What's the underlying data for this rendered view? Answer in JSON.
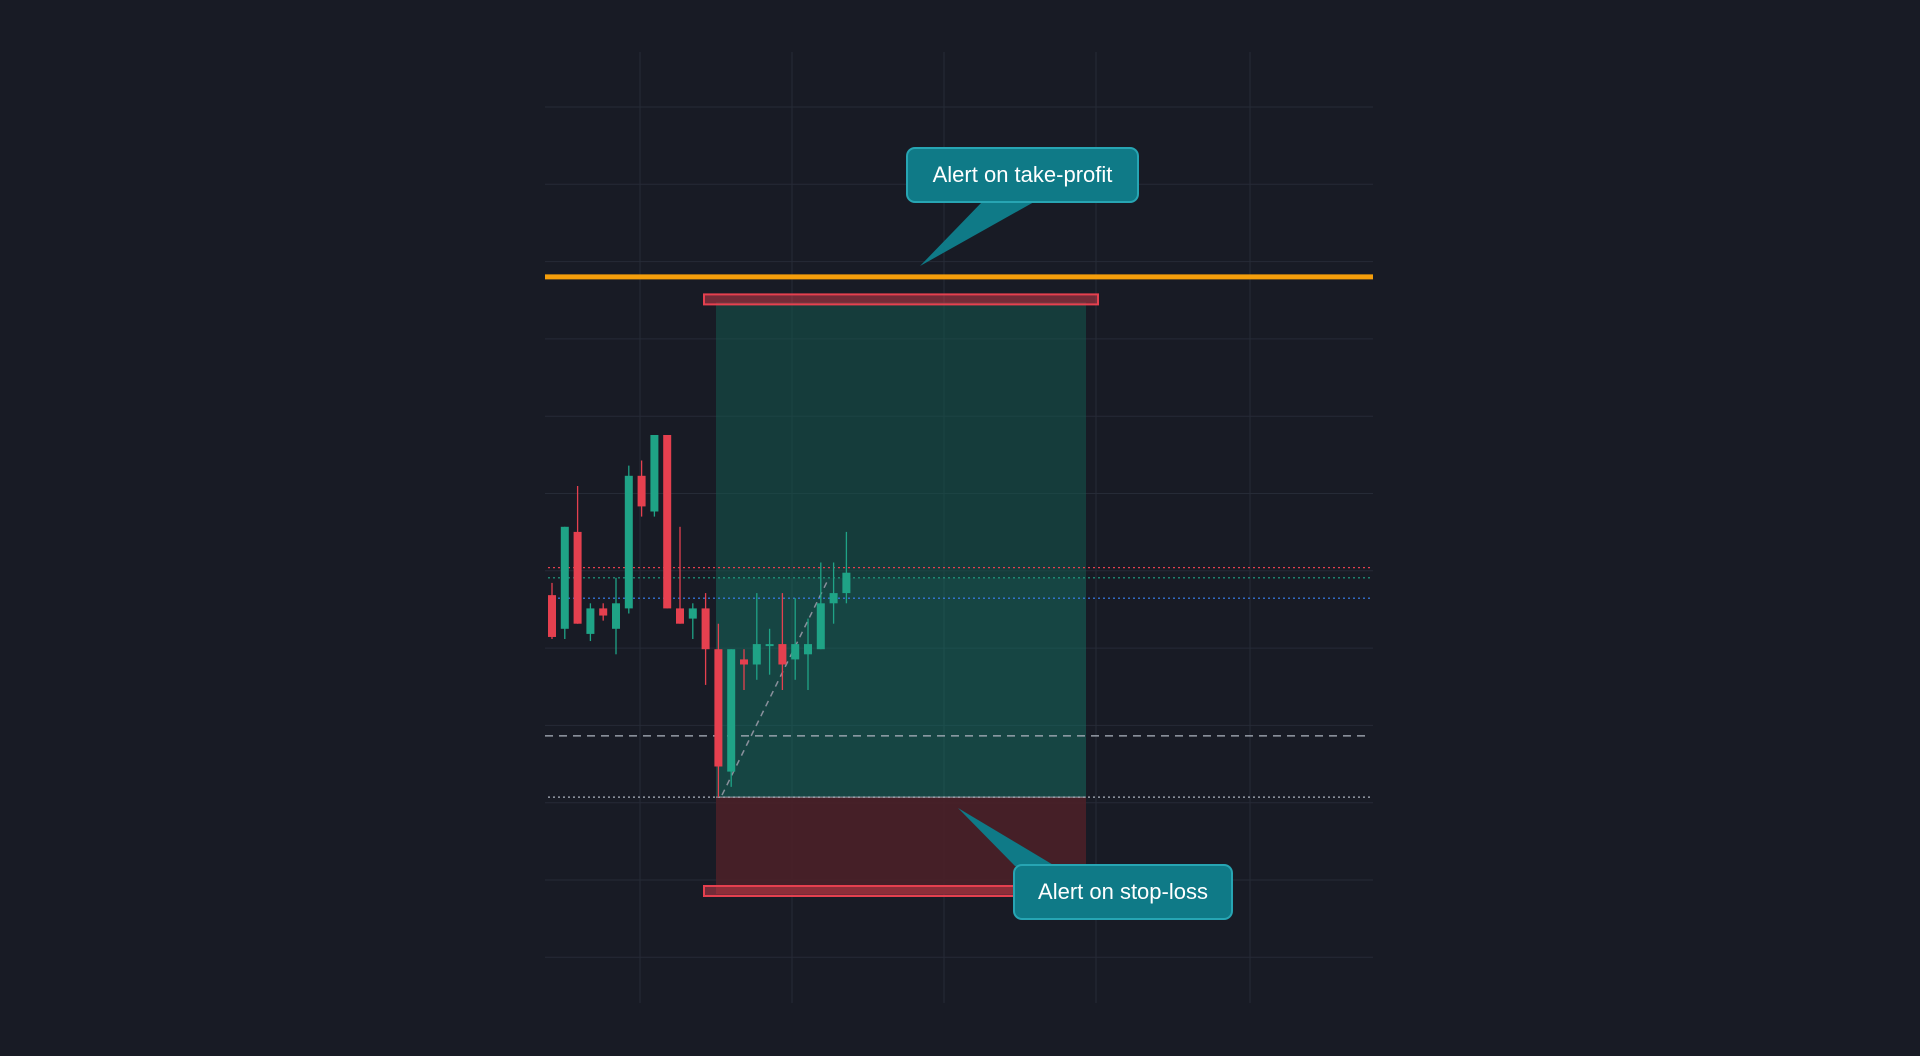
{
  "callouts": {
    "take_profit": "Alert on take-profit",
    "stop_loss": "Alert on stop-loss"
  },
  "colors": {
    "background": "#181b25",
    "grid": "#262b37",
    "up_candle": "#1fa386",
    "down_candle": "#e5404f",
    "alert_line": "#f59e0b",
    "callout_bg": "#0f7a87",
    "profit_zone": "#14574f",
    "loss_zone": "#4a2028",
    "order_box": "#e5404f",
    "blue_line": "#3b82f6"
  },
  "chart_data": {
    "type": "candlestick",
    "price_range": [
      0,
      100
    ],
    "levels": {
      "alert_line": 80.5,
      "take_profit": 78.0,
      "last_high": 52.0,
      "entry": 51.0,
      "blue_line": 49.0,
      "dashed_line": 35.5,
      "stop_entry": 29.5,
      "stop_loss": 20.0
    },
    "candles": [
      {
        "o": 49.3,
        "h": 50.5,
        "l": 45.0,
        "c": 45.2
      },
      {
        "o": 46.0,
        "h": 56.0,
        "l": 45.0,
        "c": 56.0
      },
      {
        "o": 55.5,
        "h": 60.0,
        "l": 46.5,
        "c": 46.5
      },
      {
        "o": 45.5,
        "h": 48.5,
        "l": 44.8,
        "c": 48.0
      },
      {
        "o": 48.0,
        "h": 48.5,
        "l": 46.8,
        "c": 47.3
      },
      {
        "o": 46.0,
        "h": 51.0,
        "l": 43.5,
        "c": 48.5
      },
      {
        "o": 48.0,
        "h": 62.0,
        "l": 47.5,
        "c": 61.0
      },
      {
        "o": 61.0,
        "h": 62.5,
        "l": 57.0,
        "c": 58.0
      },
      {
        "o": 57.5,
        "h": 65.0,
        "l": 57.0,
        "c": 65.0
      },
      {
        "o": 65.0,
        "h": 65.0,
        "l": 48.0,
        "c": 48.0
      },
      {
        "o": 48.0,
        "h": 56.0,
        "l": 46.5,
        "c": 46.5
      },
      {
        "o": 47.0,
        "h": 48.5,
        "l": 45.0,
        "c": 48.0
      },
      {
        "o": 48.0,
        "h": 49.5,
        "l": 40.5,
        "c": 44.0
      },
      {
        "o": 44.0,
        "h": 46.5,
        "l": 29.5,
        "c": 32.5
      },
      {
        "o": 32.0,
        "h": 44.0,
        "l": 30.5,
        "c": 44.0
      },
      {
        "o": 43.0,
        "h": 44.0,
        "l": 40.0,
        "c": 42.5
      },
      {
        "o": 42.5,
        "h": 49.5,
        "l": 41.0,
        "c": 44.5
      },
      {
        "o": 44.5,
        "h": 46.0,
        "l": 41.5,
        "c": 44.5
      },
      {
        "o": 44.5,
        "h": 49.5,
        "l": 40.0,
        "c": 42.5
      },
      {
        "o": 43.0,
        "h": 49.0,
        "l": 41.0,
        "c": 44.5
      },
      {
        "o": 43.5,
        "h": 47.0,
        "l": 40.0,
        "c": 44.5
      },
      {
        "o": 44.0,
        "h": 52.5,
        "l": 44.0,
        "c": 48.5
      },
      {
        "o": 48.5,
        "h": 52.5,
        "l": 46.5,
        "c": 49.5
      },
      {
        "o": 49.5,
        "h": 55.5,
        "l": 48.5,
        "c": 51.5
      }
    ]
  }
}
